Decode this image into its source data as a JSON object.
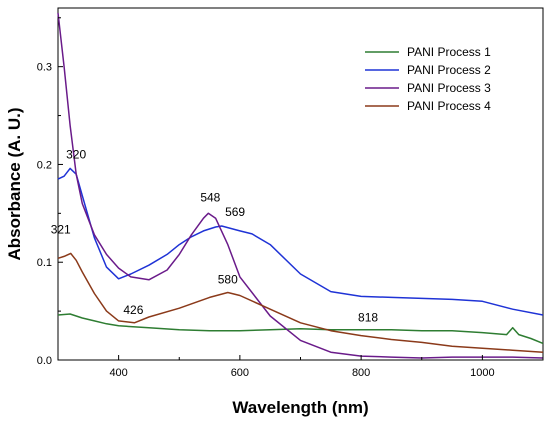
{
  "chart_data": {
    "type": "line",
    "title": "",
    "xlabel": "Wavelength (nm)",
    "ylabel": "Absorbance (A. U.)",
    "xlim": [
      300,
      1100
    ],
    "ylim": [
      0.0,
      0.36
    ],
    "xticks": [
      400,
      600,
      800,
      1000
    ],
    "yticks": [
      0.0,
      0.1,
      0.2,
      0.3
    ],
    "xtick_labels": [
      "400",
      "600",
      "800",
      "1000"
    ],
    "ytick_labels": [
      "0.0",
      "0.1",
      "0.2",
      "0.3"
    ],
    "grid": false,
    "legend_position": "top-right",
    "series": [
      {
        "name": "PANI Process 1",
        "color": "#2e7d32",
        "x": [
          300,
          320,
          340,
          360,
          380,
          400,
          450,
          500,
          550,
          600,
          650,
          700,
          750,
          800,
          850,
          900,
          950,
          1000,
          1040,
          1050,
          1060,
          1080,
          1100
        ],
        "y": [
          0.046,
          0.047,
          0.043,
          0.04,
          0.037,
          0.035,
          0.033,
          0.031,
          0.03,
          0.03,
          0.031,
          0.032,
          0.031,
          0.031,
          0.031,
          0.03,
          0.03,
          0.028,
          0.026,
          0.033,
          0.026,
          0.022,
          0.017
        ]
      },
      {
        "name": "PANI Process 2",
        "color": "#1f33d6",
        "x": [
          300,
          310,
          320,
          330,
          340,
          360,
          380,
          400,
          420,
          450,
          480,
          500,
          520,
          540,
          560,
          570,
          600,
          620,
          650,
          700,
          750,
          800,
          850,
          900,
          950,
          1000,
          1050,
          1100
        ],
        "y": [
          0.185,
          0.188,
          0.196,
          0.19,
          0.168,
          0.125,
          0.095,
          0.083,
          0.088,
          0.097,
          0.108,
          0.118,
          0.126,
          0.132,
          0.136,
          0.137,
          0.132,
          0.129,
          0.118,
          0.088,
          0.07,
          0.065,
          0.064,
          0.063,
          0.062,
          0.06,
          0.052,
          0.046
        ]
      },
      {
        "name": "PANI Process 3",
        "color": "#6a1b8a",
        "x": [
          300,
          310,
          320,
          330,
          340,
          360,
          380,
          400,
          420,
          450,
          480,
          500,
          520,
          540,
          548,
          560,
          580,
          600,
          650,
          700,
          750,
          800,
          850,
          900,
          950,
          1000,
          1050,
          1100
        ],
        "y": [
          0.355,
          0.3,
          0.24,
          0.19,
          0.16,
          0.128,
          0.108,
          0.094,
          0.085,
          0.082,
          0.092,
          0.108,
          0.128,
          0.145,
          0.15,
          0.145,
          0.118,
          0.085,
          0.045,
          0.02,
          0.008,
          0.004,
          0.003,
          0.002,
          0.003,
          0.003,
          0.003,
          0.002
        ]
      },
      {
        "name": "PANI Process 4",
        "color": "#8b3a1a",
        "x": [
          300,
          310,
          321,
          330,
          340,
          360,
          380,
          400,
          426,
          450,
          500,
          550,
          580,
          600,
          650,
          700,
          750,
          800,
          850,
          900,
          950,
          1000,
          1050,
          1100
        ],
        "y": [
          0.104,
          0.106,
          0.109,
          0.102,
          0.09,
          0.068,
          0.05,
          0.04,
          0.038,
          0.044,
          0.053,
          0.064,
          0.069,
          0.066,
          0.052,
          0.038,
          0.03,
          0.025,
          0.021,
          0.018,
          0.014,
          0.012,
          0.01,
          0.008
        ]
      }
    ],
    "annotations": [
      {
        "text": "320",
        "x": 320,
        "y": 0.196
      },
      {
        "text": "321",
        "x": 321,
        "y": 0.109
      },
      {
        "text": "548",
        "x": 548,
        "y": 0.15
      },
      {
        "text": "569",
        "x": 569,
        "y": 0.137
      },
      {
        "text": "580",
        "x": 580,
        "y": 0.069
      },
      {
        "text": "426",
        "x": 426,
        "y": 0.038
      },
      {
        "text": "818",
        "x": 818,
        "y": 0.031
      }
    ]
  }
}
